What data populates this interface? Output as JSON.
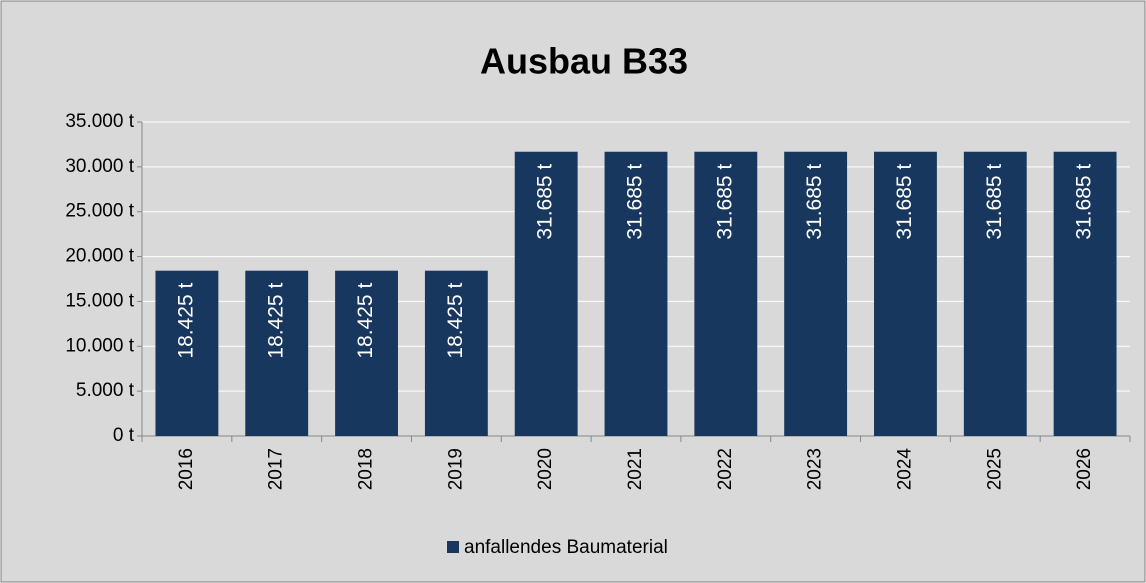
{
  "chart_data": {
    "type": "bar",
    "title": "Ausbau B33",
    "categories": [
      "2016",
      "2017",
      "2018",
      "2019",
      "2020",
      "2021",
      "2022",
      "2023",
      "2024",
      "2025",
      "2026"
    ],
    "series": [
      {
        "name": "anfallendes Baumaterial",
        "color": "#17375e",
        "values": [
          18425,
          18425,
          18425,
          18425,
          31685,
          31685,
          31685,
          31685,
          31685,
          31685,
          31685
        ],
        "value_labels": [
          "18.425 t",
          "18.425 t",
          "18.425 t",
          "18.425 t",
          "31.685 t",
          "31.685 t",
          "31.685 t",
          "31.685 t",
          "31.685 t",
          "31.685 t",
          "31.685 t"
        ]
      }
    ],
    "ylim": [
      0,
      35000
    ],
    "yticks": [
      {
        "value": 0,
        "label": "0 t"
      },
      {
        "value": 5000,
        "label": "5.000 t"
      },
      {
        "value": 10000,
        "label": "10.000 t"
      },
      {
        "value": 15000,
        "label": "15.000 t"
      },
      {
        "value": 20000,
        "label": "20.000 t"
      },
      {
        "value": 25000,
        "label": "25.000 t"
      },
      {
        "value": 30000,
        "label": "30.000 t"
      },
      {
        "value": 35000,
        "label": "35.000 t"
      }
    ],
    "grid": true,
    "legend": "bottom"
  }
}
